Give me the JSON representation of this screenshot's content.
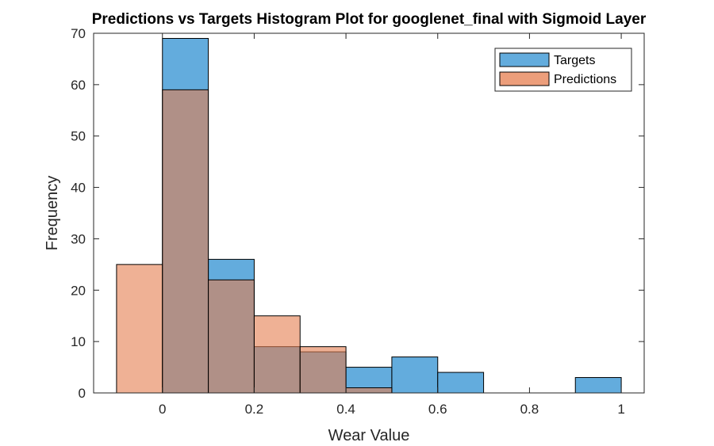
{
  "chart_data": {
    "type": "bar",
    "title": "Predictions vs Targets Histogram Plot for googlenet_final with Sigmoid Layer",
    "xlabel": "Wear Value",
    "ylabel": "Frequency",
    "xlim": [
      -0.15,
      1.05
    ],
    "ylim": [
      0,
      70
    ],
    "xticks": [
      0,
      0.2,
      0.4,
      0.6,
      0.8,
      1
    ],
    "xtick_labels": [
      "0",
      "0.2",
      "0.4",
      "0.6",
      "0.8",
      "1"
    ],
    "yticks": [
      0,
      10,
      20,
      30,
      40,
      50,
      60,
      70
    ],
    "ytick_labels": [
      "0",
      "10",
      "20",
      "30",
      "40",
      "50",
      "60",
      "70"
    ],
    "grid": false,
    "legend_position": "top-right",
    "bin_width": 0.1,
    "series": [
      {
        "name": "Targets",
        "color": "#4DA0D8",
        "bins": [
          {
            "start": 0.0,
            "value": 69
          },
          {
            "start": 0.1,
            "value": 26
          },
          {
            "start": 0.2,
            "value": 9
          },
          {
            "start": 0.3,
            "value": 8
          },
          {
            "start": 0.4,
            "value": 5
          },
          {
            "start": 0.5,
            "value": 7
          },
          {
            "start": 0.6,
            "value": 4
          },
          {
            "start": 0.9,
            "value": 3
          }
        ]
      },
      {
        "name": "Predictions",
        "color": "#E57D4F",
        "bins": [
          {
            "start": -0.1,
            "value": 25
          },
          {
            "start": 0.0,
            "value": 59
          },
          {
            "start": 0.1,
            "value": 22
          },
          {
            "start": 0.2,
            "value": 15
          },
          {
            "start": 0.3,
            "value": 9
          },
          {
            "start": 0.4,
            "value": 1
          }
        ]
      }
    ]
  }
}
